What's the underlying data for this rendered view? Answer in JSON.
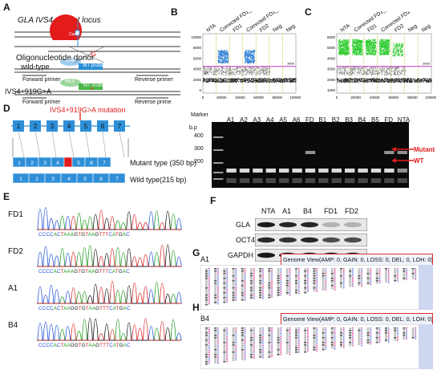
{
  "panels": {
    "A": {
      "label": "A",
      "title_gene": "GLA",
      "title_rest": "IVS4 mutant locus",
      "cas9": "Cas9",
      "donor": "Oligonucleotide donor",
      "pam": "PAM",
      "wt_label": "wild-type",
      "fwd_primer": "Forward primer",
      "rev_primer": "Reverse primer",
      "wt_probe": "WT probe",
      "hex": "HEX",
      "mt_probe": "MT probe",
      "mut_label": "IVS4+919G>A",
      "fwd_primer2": "Forward primer",
      "rev_primer2": "Reverse prime",
      "g_mark": "G",
      "a_mark": "A"
    },
    "B": {
      "label": "B",
      "lanes": [
        "NTA",
        "Corrected FD1_A",
        "FD1",
        "Corrected FD2_B",
        "FD2",
        "Neg",
        "Neg"
      ],
      "yticks": [
        "10000",
        "8000",
        "6000",
        "4000",
        "2000",
        "0"
      ],
      "xticks": [
        "0",
        "20000",
        "40000",
        "60000",
        "80000",
        "100000"
      ],
      "threshold": "3000"
    },
    "C": {
      "label": "C",
      "lanes": [
        "NTA",
        "Corrected FD1_A",
        "FD1",
        "Corrected FD2",
        "FD2",
        "Neg",
        "Neg"
      ],
      "yticks": [
        "6000",
        "5000",
        "4000",
        "3000",
        "2000",
        "1000"
      ],
      "xticks": [
        "0",
        "20000",
        "40000",
        "60000",
        "80000",
        "100000"
      ],
      "threshold": "3000"
    },
    "D": {
      "label": "D",
      "mutation": "IVS4+919G>A mutation",
      "exons": [
        "1",
        "2",
        "3",
        "4",
        "5",
        "6",
        "7"
      ],
      "mutant_type": "Mutant type (350 bp)",
      "wild_type": "Wild type(215 bp)",
      "gel_bp": "b.p",
      "gel_marker": "Marker",
      "gel_lanes": [
        "A1",
        "A2",
        "A3",
        "A4",
        "A5",
        "A6",
        "FD",
        "B1",
        "B2",
        "B3",
        "B4",
        "B5",
        "FD",
        "NTA"
      ],
      "gel_sizes": [
        "400",
        "300",
        "200"
      ],
      "mutant_arrow": "Mutant",
      "wt_arrow": "WT"
    },
    "E": {
      "label": "E",
      "samples": [
        "FD1",
        "FD2",
        "A1",
        "B4"
      ],
      "seq_fd": "CCCCACTAAAGTGTAAGTTTCATGAC",
      "seq_a1": "CCCCACTAAGGTGTAAGTTTCATGAC",
      "seq_b4": "CCCCACTAAGGTGTAAGTTTCATGAC"
    },
    "F": {
      "label": "F",
      "lanes": [
        "NTA",
        "A1",
        "B4",
        "FD1",
        "FD2"
      ],
      "proteins": [
        "GLA",
        "OCT4",
        "GAPDH"
      ]
    },
    "G": {
      "label": "G",
      "sample": "A1",
      "genome_view": "Genome View(AMP: 0, GAIN: 0, LOSS: 0, DEL: 0, LOH: 0)"
    },
    "H": {
      "label": "H",
      "sample": "B4",
      "genome_view": "Genome View(AMP: 0, GAIN: 0, LOSS: 0, DEL: 0, LOH: 0)"
    }
  },
  "colors": {
    "cas9": "#e31b1b",
    "probe_green": "#49b649",
    "probe_blue": "#2b8fd6",
    "exon_blue": "#2e8fd8",
    "mutant_red": "#e01c1c",
    "ddpcr_blue": "#2a7fd4",
    "ddpcr_green": "#22c922",
    "threshold": "#c03cc0"
  }
}
